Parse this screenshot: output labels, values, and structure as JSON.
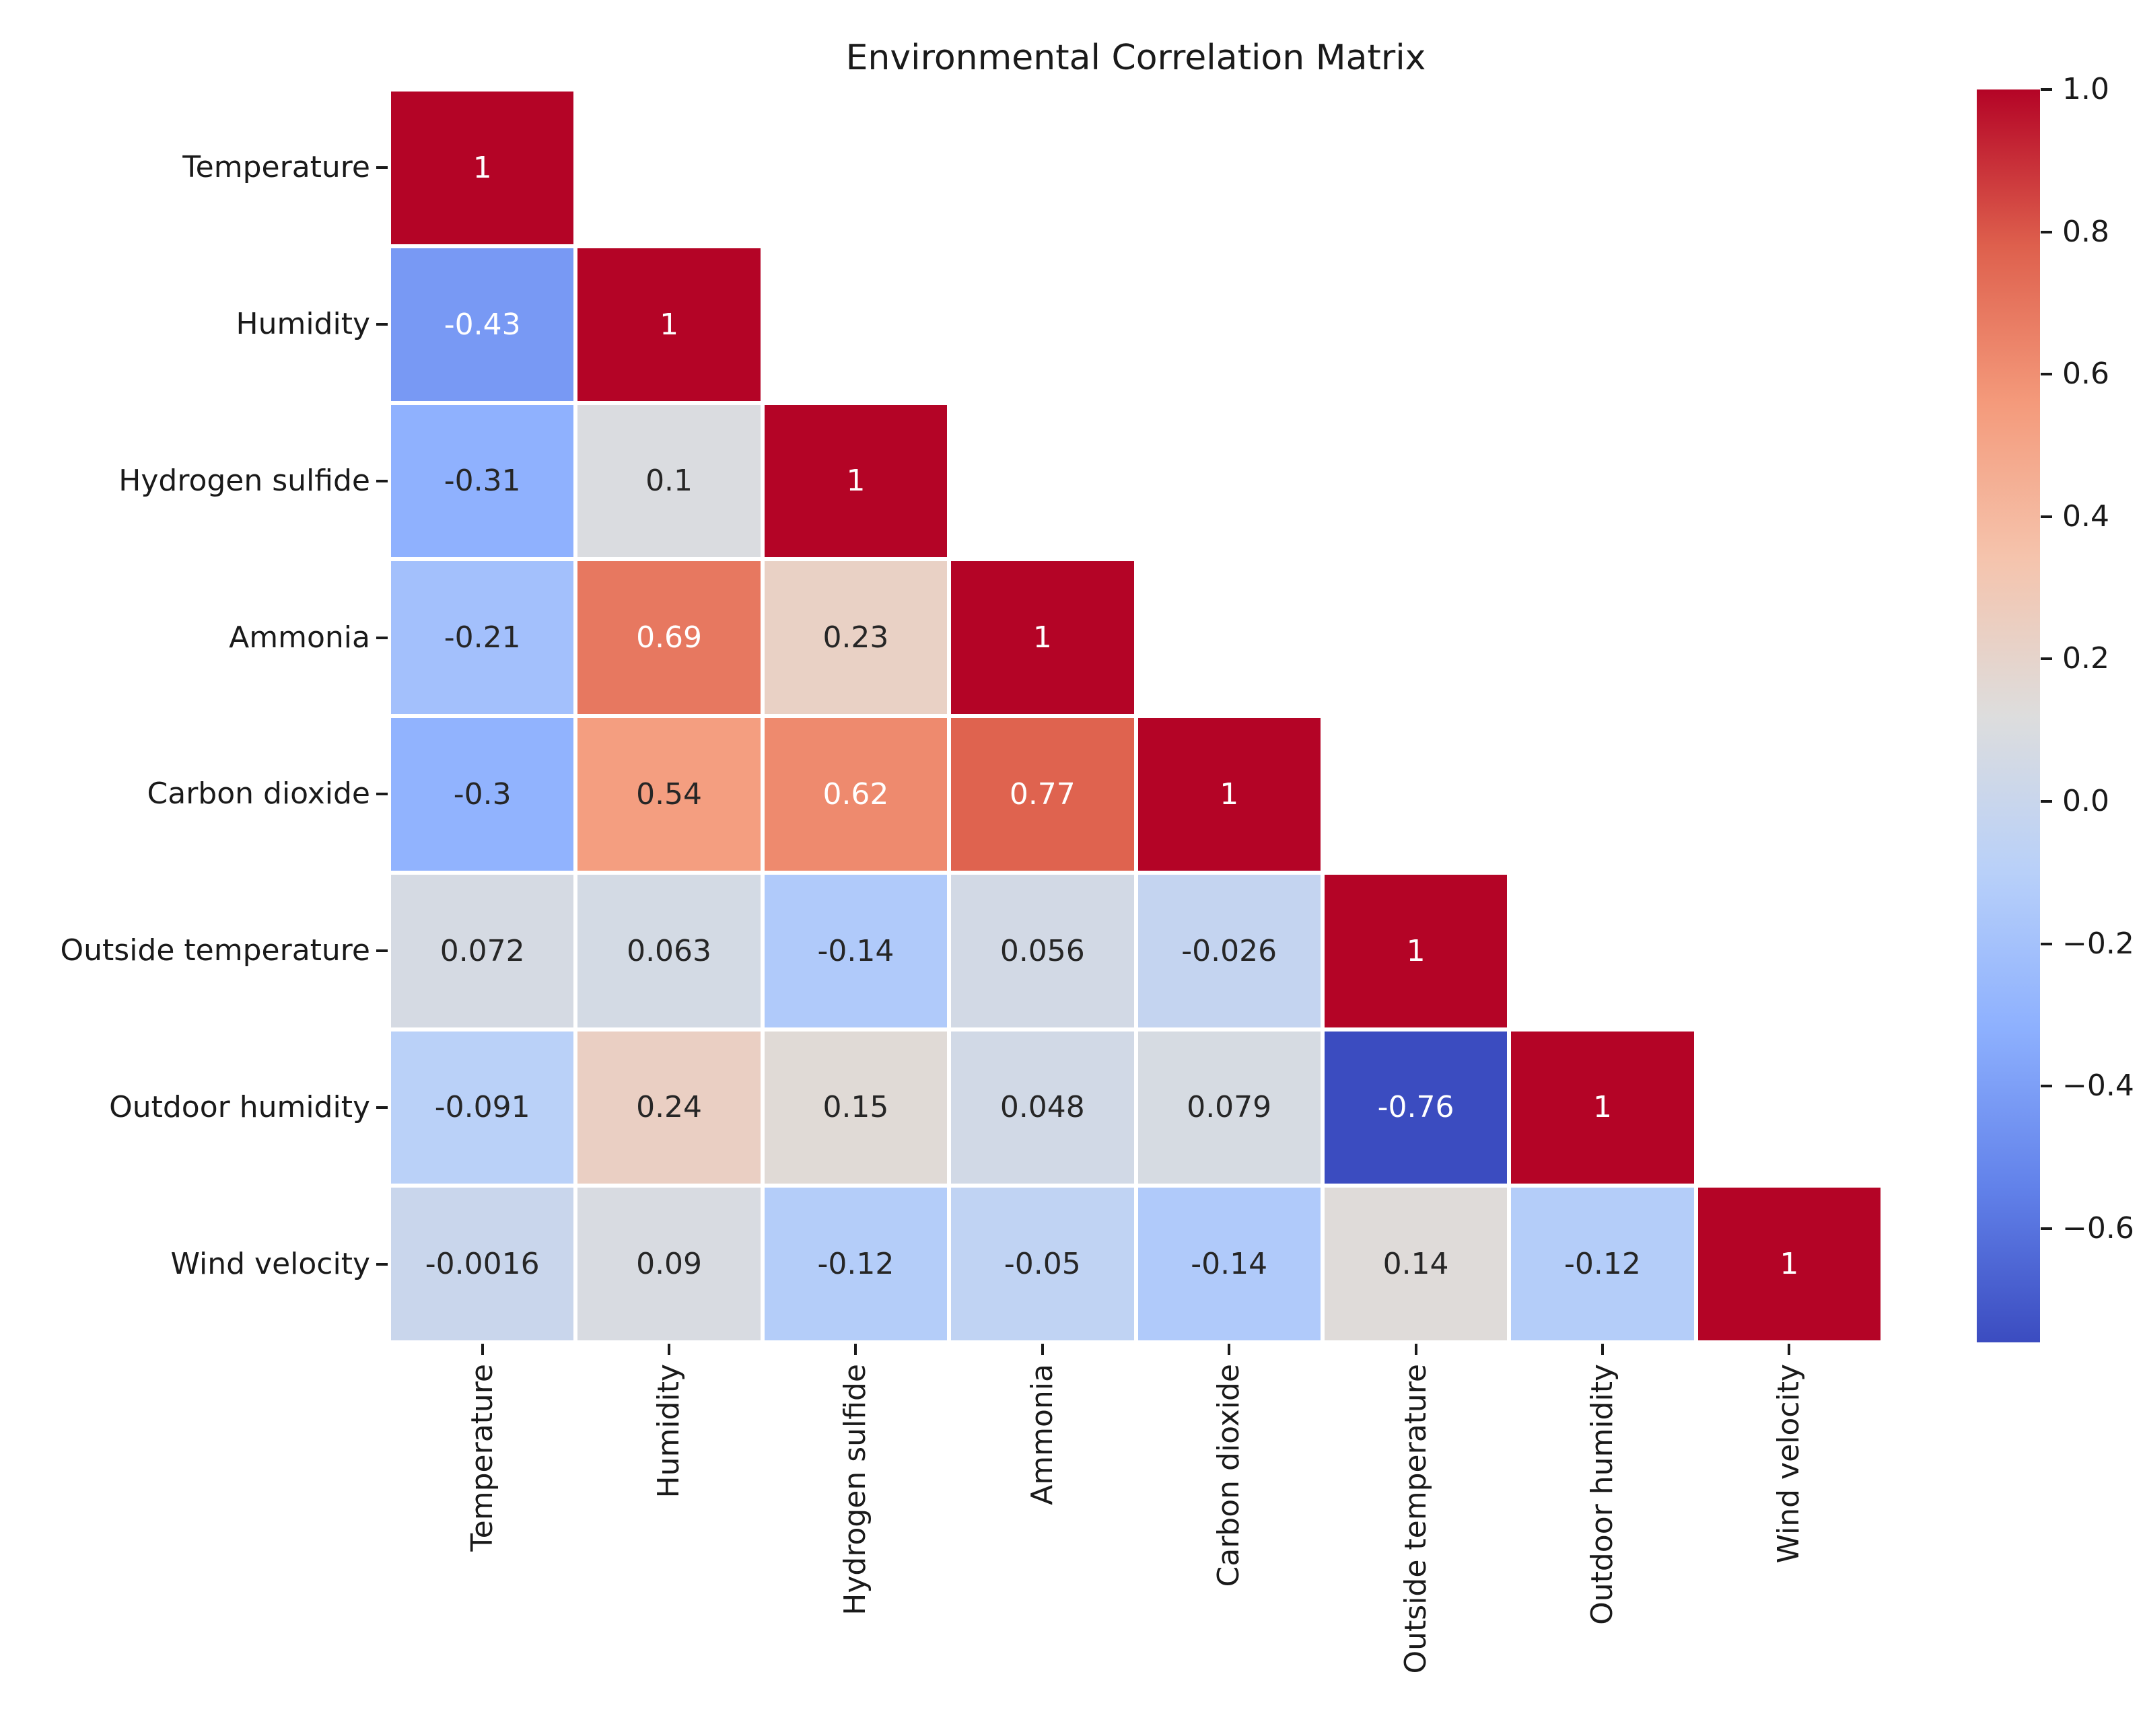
{
  "title": "Environmental Correlation Matrix",
  "colors": {
    "background": "#ffffff",
    "axis_text": "#1a1a1a",
    "annotation_dark": "#262626",
    "annotation_light": "#ffffff",
    "grid_line": "#ffffff"
  },
  "chart_data": {
    "type": "heatmap",
    "title": "Environmental Correlation Matrix",
    "mask": "upper triangle hidden (lower-triangular correlation matrix)",
    "grid": "white cell separators",
    "legend_position": "colorbar right",
    "variables": [
      "Temperature",
      "Humidity",
      "Hydrogen sulfide",
      "Ammonia",
      "Carbon dioxide",
      "Outside temperature",
      "Outdoor humidity",
      "Wind velocity"
    ],
    "matrix_lower_triangle": [
      [
        1
      ],
      [
        -0.43,
        1
      ],
      [
        -0.31,
        0.1,
        1
      ],
      [
        -0.21,
        0.69,
        0.23,
        1
      ],
      [
        -0.3,
        0.54,
        0.62,
        0.77,
        1
      ],
      [
        0.072,
        0.063,
        -0.14,
        0.056,
        -0.026,
        1
      ],
      [
        -0.091,
        0.24,
        0.15,
        0.048,
        0.079,
        -0.76,
        1
      ],
      [
        -0.0016,
        0.09,
        -0.12,
        -0.05,
        -0.14,
        0.14,
        -0.12,
        1
      ]
    ],
    "cell_labels": [
      [
        "1"
      ],
      [
        "-0.43",
        "1"
      ],
      [
        "-0.31",
        "0.1",
        "1"
      ],
      [
        "-0.21",
        "0.69",
        "0.23",
        "1"
      ],
      [
        "-0.3",
        "0.54",
        "0.62",
        "0.77",
        "1"
      ],
      [
        "0.072",
        "0.063",
        "-0.14",
        "0.056",
        "-0.026",
        "1"
      ],
      [
        "-0.091",
        "0.24",
        "0.15",
        "0.048",
        "0.079",
        "-0.76",
        "1"
      ],
      [
        "-0.0016",
        "0.09",
        "-0.12",
        "-0.05",
        "-0.14",
        "0.14",
        "-0.12",
        "1"
      ]
    ],
    "colormap": {
      "name": "coolwarm",
      "vmin": -0.76,
      "vmax": 1.0,
      "anchors": [
        "#3B4CC0",
        "#6282EA",
        "#8DB0FE",
        "#B8D0F9",
        "#DDDDDD",
        "#F5C4AD",
        "#F49A7B",
        "#DE604D",
        "#B40426"
      ]
    },
    "colorbar": {
      "tick_labels": [
        "1.0",
        "0.8",
        "0.6",
        "0.4",
        "0.2",
        "0.0",
        "−0.2",
        "−0.4",
        "−0.6"
      ],
      "tick_values": [
        1.0,
        0.8,
        0.6,
        0.4,
        0.2,
        0.0,
        -0.2,
        -0.4,
        -0.6
      ]
    }
  }
}
